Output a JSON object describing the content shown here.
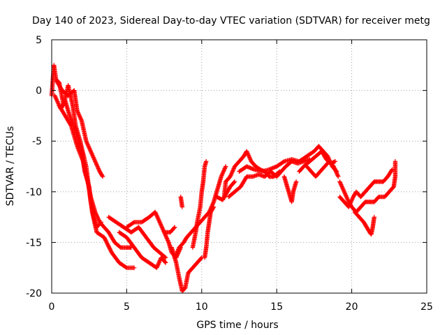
{
  "chart_data": {
    "type": "scatter",
    "title": "Day 140 of 2023, Sidereal Day-to-day VTEC variation (SDTVAR) for receiver metg",
    "xlabel": "GPS time / hours",
    "ylabel": "SDTVAR / TECUs",
    "xlim": [
      0,
      25
    ],
    "ylim": [
      -20,
      5
    ],
    "xticks": [
      0,
      5,
      10,
      15,
      20,
      25
    ],
    "yticks": [
      5,
      0,
      -5,
      -10,
      -15,
      -20
    ],
    "xtick_labels": [
      "0",
      "5",
      "10",
      "15",
      "20",
      "25"
    ],
    "ytick_labels": [
      "5",
      "0",
      "-5",
      "-10",
      "-15",
      "-20"
    ],
    "grid": true,
    "marker": "+",
    "color": "#ff0000",
    "series": [
      {
        "name": "SDTVAR",
        "segments": [
          [
            [
              0.0,
              -0.5
            ],
            [
              0.15,
              2.5
            ],
            [
              0.3,
              1.0
            ],
            [
              0.5,
              0.8
            ],
            [
              0.8,
              -1.5
            ],
            [
              1.1,
              0.5
            ],
            [
              1.4,
              -1.5
            ],
            [
              1.6,
              -3.5
            ],
            [
              1.9,
              -5.0
            ],
            [
              2.3,
              -7.5
            ],
            [
              2.6,
              -11.0
            ],
            [
              2.8,
              -12.5
            ],
            [
              3.0,
              -13.5
            ],
            [
              3.3,
              -13.0
            ]
          ],
          [
            [
              0.2,
              -0.5
            ],
            [
              0.6,
              -1.8
            ],
            [
              0.9,
              -1.0
            ],
            [
              1.2,
              -2.5
            ],
            [
              1.6,
              -4.0
            ],
            [
              2.0,
              -6.0
            ],
            [
              2.2,
              -8.0
            ],
            [
              2.5,
              -9.5
            ],
            [
              2.7,
              -12.0
            ],
            [
              3.0,
              -14.0
            ],
            [
              3.5,
              -14.5
            ],
            [
              4.0,
              -16.0
            ],
            [
              4.5,
              -17.0
            ],
            [
              5.0,
              -17.5
            ],
            [
              5.5,
              -17.5
            ]
          ],
          [
            [
              0.5,
              -1.5
            ],
            [
              0.9,
              -2.5
            ],
            [
              1.3,
              -3.5
            ],
            [
              1.7,
              -5.5
            ],
            [
              2.1,
              -7.0
            ],
            [
              2.4,
              -9.0
            ],
            [
              2.6,
              -10.5
            ],
            [
              2.9,
              -12.0
            ],
            [
              3.2,
              -13.0
            ],
            [
              3.5,
              -13.5
            ],
            [
              3.8,
              -14.0
            ],
            [
              4.2,
              -15.0
            ],
            [
              4.6,
              -15.5
            ],
            [
              5.0,
              -15.5
            ],
            [
              5.3,
              -15.5
            ]
          ],
          [
            [
              0.3,
              1.0
            ],
            [
              0.7,
              0.0
            ],
            [
              1.1,
              -0.5
            ],
            [
              1.5,
              0.0
            ],
            [
              1.7,
              -2.0
            ],
            [
              2.0,
              -3.0
            ],
            [
              2.3,
              -5.0
            ],
            [
              2.6,
              -6.0
            ],
            [
              2.9,
              -7.0
            ],
            [
              3.2,
              -8.0
            ],
            [
              3.4,
              -8.5
            ]
          ],
          [
            [
              3.8,
              -12.5
            ],
            [
              4.3,
              -13.0
            ],
            [
              4.8,
              -13.5
            ],
            [
              5.3,
              -14.0
            ],
            [
              5.8,
              -13.5
            ],
            [
              6.3,
              -14.5
            ],
            [
              6.8,
              -15.5
            ],
            [
              7.2,
              -16.0
            ],
            [
              7.6,
              -16.5
            ]
          ],
          [
            [
              5.0,
              -13.5
            ],
            [
              5.5,
              -13.0
            ],
            [
              6.0,
              -13.0
            ],
            [
              6.5,
              -12.5
            ],
            [
              6.9,
              -12.0
            ],
            [
              7.2,
              -13.0
            ],
            [
              7.5,
              -14.0
            ],
            [
              7.8,
              -15.0
            ],
            [
              8.0,
              -16.0
            ],
            [
              8.3,
              -16.5
            ],
            [
              8.6,
              -15.5
            ]
          ],
          [
            [
              4.5,
              -14.0
            ],
            [
              5.0,
              -14.5
            ],
            [
              5.5,
              -15.5
            ],
            [
              6.0,
              -16.5
            ],
            [
              6.5,
              -17.0
            ],
            [
              7.0,
              -17.5
            ],
            [
              7.3,
              -16.5
            ],
            [
              7.6,
              -17.0
            ]
          ],
          [
            [
              7.5,
              -14.0
            ],
            [
              7.9,
              -14.0
            ],
            [
              8.2,
              -13.5
            ]
          ],
          [
            [
              8.0,
              -15.5
            ],
            [
              8.3,
              -17.0
            ],
            [
              8.5,
              -18.5
            ],
            [
              8.7,
              -19.8
            ],
            [
              8.9,
              -19.5
            ],
            [
              9.1,
              -18.0
            ],
            [
              9.4,
              -17.5
            ],
            [
              9.7,
              -17.0
            ],
            [
              10.0,
              -16.5
            ]
          ],
          [
            [
              8.2,
              -16.5
            ],
            [
              8.5,
              -15.5
            ],
            [
              8.8,
              -15.0
            ],
            [
              9.0,
              -14.5
            ],
            [
              9.3,
              -14.0
            ],
            [
              9.6,
              -13.5
            ],
            [
              9.9,
              -13.0
            ],
            [
              10.2,
              -12.5
            ],
            [
              10.5,
              -12.0
            ],
            [
              10.8,
              -11.0
            ],
            [
              11.0,
              -10.0
            ],
            [
              11.3,
              -8.5
            ],
            [
              11.6,
              -7.5
            ]
          ],
          [
            [
              9.4,
              -15.5
            ],
            [
              9.6,
              -14.0
            ],
            [
              9.7,
              -13.0
            ],
            [
              9.9,
              -11.5
            ],
            [
              10.0,
              -10.0
            ],
            [
              10.1,
              -9.0
            ],
            [
              10.2,
              -7.5
            ],
            [
              10.3,
              -7.0
            ]
          ],
          [
            [
              8.6,
              -10.5
            ],
            [
              8.7,
              -11.5
            ]
          ],
          [
            [
              10.2,
              -16.5
            ],
            [
              10.3,
              -15.5
            ],
            [
              10.4,
              -14.0
            ],
            [
              10.5,
              -13.0
            ],
            [
              10.6,
              -12.0
            ],
            [
              10.8,
              -11.5
            ]
          ],
          [
            [
              11.5,
              -10.5
            ],
            [
              11.6,
              -9.0
            ],
            [
              11.9,
              -8.5
            ],
            [
              12.2,
              -7.5
            ],
            [
              12.5,
              -7.0
            ],
            [
              12.8,
              -6.5
            ],
            [
              13.0,
              -6.0
            ],
            [
              13.3,
              -7.0
            ],
            [
              13.6,
              -7.5
            ],
            [
              13.9,
              -7.8
            ],
            [
              14.2,
              -8.0
            ],
            [
              14.5,
              -8.5
            ],
            [
              14.8,
              -8.5
            ],
            [
              15.2,
              -8.0
            ]
          ],
          [
            [
              11.8,
              -10.5
            ],
            [
              12.2,
              -10.0
            ],
            [
              12.6,
              -9.5
            ],
            [
              13.0,
              -8.5
            ],
            [
              13.4,
              -8.5
            ],
            [
              13.8,
              -8.3
            ],
            [
              14.2,
              -8.5
            ],
            [
              14.6,
              -8.0
            ],
            [
              15.0,
              -8.5
            ],
            [
              15.3,
              -8.0
            ],
            [
              15.6,
              -7.5
            ],
            [
              16.0,
              -7.0
            ],
            [
              16.4,
              -7.2
            ],
            [
              16.8,
              -7.0
            ],
            [
              17.2,
              -6.8
            ]
          ],
          [
            [
              12.5,
              -8.0
            ],
            [
              13.0,
              -7.5
            ],
            [
              13.5,
              -7.8
            ],
            [
              14.0,
              -8.0
            ],
            [
              14.5,
              -7.8
            ],
            [
              15.0,
              -7.5
            ],
            [
              15.5,
              -7.0
            ],
            [
              16.0,
              -6.8
            ],
            [
              16.5,
              -7.0
            ],
            [
              17.0,
              -6.5
            ],
            [
              17.5,
              -6.0
            ],
            [
              17.8,
              -5.5
            ],
            [
              18.1,
              -6.0
            ],
            [
              18.4,
              -6.5
            ],
            [
              18.7,
              -7.5
            ],
            [
              19.0,
              -8.0
            ]
          ],
          [
            [
              15.5,
              -8.5
            ],
            [
              15.7,
              -9.5
            ],
            [
              15.9,
              -10.5
            ],
            [
              16.0,
              -11.0
            ],
            [
              16.1,
              -10.0
            ],
            [
              16.3,
              -9.0
            ]
          ],
          [
            [
              16.5,
              -8.0
            ],
            [
              16.8,
              -7.5
            ],
            [
              17.2,
              -7.0
            ],
            [
              17.6,
              -6.5
            ],
            [
              18.0,
              -6.0
            ],
            [
              18.3,
              -6.8
            ],
            [
              18.6,
              -7.2
            ],
            [
              18.9,
              -7.0
            ]
          ],
          [
            [
              17.0,
              -7.5
            ],
            [
              17.3,
              -8.0
            ],
            [
              17.6,
              -8.5
            ],
            [
              17.9,
              -8.0
            ],
            [
              18.2,
              -7.5
            ],
            [
              18.5,
              -7.0
            ],
            [
              18.8,
              -7.5
            ],
            [
              19.1,
              -8.5
            ]
          ],
          [
            [
              19.2,
              -9.0
            ],
            [
              19.5,
              -10.0
            ],
            [
              19.8,
              -11.0
            ],
            [
              20.0,
              -11.5
            ],
            [
              20.3,
              -12.0
            ],
            [
              20.6,
              -11.5
            ],
            [
              20.9,
              -11.0
            ],
            [
              21.2,
              -11.0
            ],
            [
              21.5,
              -11.0
            ],
            [
              21.8,
              -10.5
            ],
            [
              22.2,
              -10.5
            ],
            [
              22.5,
              -10.0
            ],
            [
              22.8,
              -9.5
            ],
            [
              22.9,
              -8.5
            ],
            [
              22.9,
              -7.0
            ]
          ],
          [
            [
              19.2,
              -10.5
            ],
            [
              19.5,
              -11.0
            ],
            [
              19.8,
              -11.5
            ],
            [
              20.1,
              -10.5
            ],
            [
              20.3,
              -10.0
            ],
            [
              20.6,
              -10.5
            ],
            [
              20.9,
              -10.0
            ],
            [
              21.2,
              -9.5
            ],
            [
              21.5,
              -9.0
            ],
            [
              21.8,
              -9.0
            ],
            [
              22.1,
              -9.0
            ],
            [
              22.4,
              -8.5
            ],
            [
              22.7,
              -7.8
            ]
          ],
          [
            [
              20.2,
              -12.0
            ],
            [
              20.5,
              -12.5
            ],
            [
              20.8,
              -13.0
            ],
            [
              21.0,
              -13.5
            ],
            [
              21.2,
              -14.0
            ],
            [
              21.3,
              -14.2
            ],
            [
              21.4,
              -13.5
            ],
            [
              21.5,
              -12.5
            ]
          ],
          [
            [
              11.0,
              -10.5
            ],
            [
              11.4,
              -10.8
            ],
            [
              11.9,
              -9.5
            ],
            [
              12.2,
              -9.0
            ]
          ]
        ]
      }
    ]
  }
}
